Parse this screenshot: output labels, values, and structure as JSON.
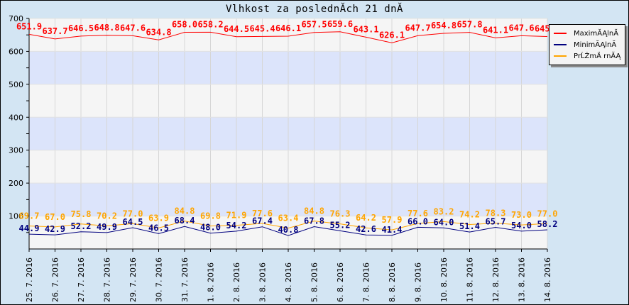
{
  "title": "Vlhkost za poslednĂ­ch 21 dnĂ­",
  "legend": {
    "items": [
      {
        "label": "MaximĂĄlnĂ­",
        "color": "#ff0000"
      },
      {
        "label": "MinimĂĄlnĂ­",
        "color": "#00007f"
      },
      {
        "label": "PrĹŻmÄ rnĂĄ",
        "color": "#ffa500"
      }
    ]
  },
  "chart_data": {
    "type": "line",
    "title": "Vlhkost za poslednĂ­ch 21 dnĂ­",
    "xlabel": "",
    "ylabel": "",
    "ylim": [
      0,
      700
    ],
    "yticks": [
      100,
      200,
      300,
      400,
      500,
      600,
      700
    ],
    "grid": true,
    "legend_position": "right",
    "categories": [
      "25. 7. 2016",
      "26. 7. 2016",
      "27. 7. 2016",
      "28. 7. 2016",
      "29. 7. 2016",
      "30. 7. 2016",
      "31. 7. 2016",
      "1. 8. 2016",
      "2. 8. 2016",
      "3. 8. 2016",
      "4. 8. 2016",
      "5. 8. 2016",
      "6. 8. 2016",
      "7. 8. 2016",
      "8. 8. 2016",
      "9. 8. 2016",
      "10. 8. 2016",
      "11. 8. 2016",
      "12. 8. 2016",
      "13. 8. 2016",
      "14. 8. 2016"
    ],
    "series": [
      {
        "name": "MaximĂĄlnĂ­",
        "color": "#ff0000",
        "values": [
          651.9,
          637.7,
          646.5,
          648.8,
          647.6,
          634.8,
          658.0,
          658.2,
          644.5,
          645.4,
          646.1,
          657.5,
          659.6,
          643.1,
          626.1,
          647.7,
          654.8,
          657.8,
          641.1,
          647.6,
          645.0
        ]
      },
      {
        "name": "MinimĂĄlnĂ­",
        "color": "#00007f",
        "values": [
          44.9,
          42.9,
          52.2,
          49.9,
          64.5,
          46.5,
          68.4,
          48.0,
          54.2,
          67.4,
          40.8,
          67.8,
          55.2,
          42.6,
          41.4,
          66.0,
          64.0,
          51.4,
          65.7,
          54.0,
          58.2
        ]
      },
      {
        "name": "PrĹŻmÄ rnĂĄ",
        "color": "#ffa500",
        "values": [
          69.7,
          67.0,
          75.8,
          70.2,
          77.0,
          63.9,
          84.8,
          69.8,
          71.9,
          77.6,
          63.4,
          84.8,
          76.3,
          64.2,
          57.9,
          77.6,
          83.2,
          74.2,
          78.3,
          73.0,
          77.0
        ]
      }
    ]
  }
}
